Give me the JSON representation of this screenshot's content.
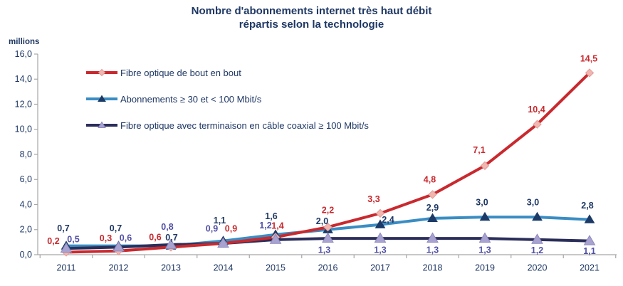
{
  "title": {
    "line1": "Nombre d'abonnements internet très haut débit",
    "line2": "répartis selon la technologie"
  },
  "chart_data": {
    "type": "line",
    "title": "Nombre d'abonnements internet très haut débit répartis selon la technologie",
    "ylabel": "millions",
    "xlabel": "",
    "ylim": [
      0,
      16
    ],
    "yticks": [
      0,
      2,
      4,
      6,
      8,
      10,
      12,
      14,
      16
    ],
    "ytick_labels": [
      "0,0",
      "2,0",
      "4,0",
      "6,0",
      "8,0",
      "10,0",
      "12,0",
      "14,0",
      "16,0"
    ],
    "grid": false,
    "legend_position": "inside-top-left",
    "decimal_separator": ",",
    "categories": [
      "2011",
      "2012",
      "2013",
      "2014",
      "2015",
      "2016",
      "2017",
      "2018",
      "2019",
      "2020",
      "2021"
    ],
    "series": [
      {
        "name": "Fibre optique de bout en bout",
        "marker": "diamond",
        "color": "#C9292E",
        "marker_fill": "#F2B6B1",
        "marker_stroke": "#E39A96",
        "label_color": "#C9292E",
        "values": [
          0.2,
          0.3,
          0.6,
          0.9,
          1.4,
          2.2,
          3.3,
          4.8,
          7.1,
          10.4,
          14.5
        ],
        "labels": [
          "0,2",
          "0,3",
          "0,6",
          "0,9",
          "1,4",
          "2,2",
          "3,3",
          "4,8",
          "7,1",
          "10,4",
          "14,5"
        ]
      },
      {
        "name": "Abonnements ≥ 30 et < 100 Mbit/s",
        "marker": "triangle",
        "color": "#3A8DC3",
        "marker_fill": "#1B3A67",
        "marker_stroke": "#1B3A67",
        "label_color": "#1F3864",
        "values": [
          0.7,
          0.7,
          0.7,
          1.1,
          1.6,
          2.0,
          2.4,
          2.9,
          3.0,
          3.0,
          2.8
        ],
        "labels": [
          "0,7",
          "0,7",
          "0,7",
          "1,1",
          "1,6",
          "2,0",
          "2,4",
          "2,9",
          "3,0",
          "3,0",
          "2,8"
        ]
      },
      {
        "name": "Fibre optique avec terminaison en câble coaxial ≥ 100 Mbit/s",
        "marker": "triangle",
        "color": "#2B2E5A",
        "marker_fill": "#A7A2D0",
        "marker_stroke": "#8E88BE",
        "label_color": "#5150A5",
        "values": [
          0.5,
          0.6,
          0.8,
          0.9,
          1.2,
          1.3,
          1.3,
          1.3,
          1.3,
          1.2,
          1.1
        ],
        "labels": [
          "0,5",
          "0,6",
          "0,8",
          "0,9",
          "1,2",
          "1,3",
          "1,3",
          "1,3",
          "1,3",
          "1,2",
          "1,1"
        ]
      }
    ],
    "axis_color": "#A6A6A6",
    "text_color": "#1F3864"
  }
}
